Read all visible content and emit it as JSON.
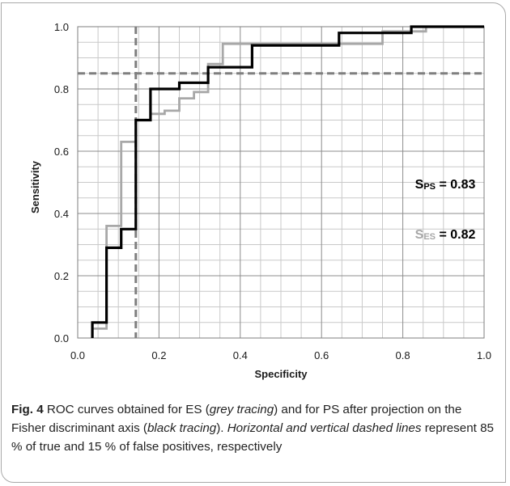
{
  "chart_data": {
    "type": "line",
    "xlabel": "Specificity",
    "ylabel": "Sensitivity",
    "xlim": [
      0,
      1.0
    ],
    "ylim": [
      0,
      1.0
    ],
    "x_ticks": [
      "0.0",
      "0.2",
      "0.4",
      "0.6",
      "0.8",
      "1.0"
    ],
    "y_ticks": [
      "0.0",
      "0.2",
      "0.4",
      "0.6",
      "0.8",
      "1.0"
    ],
    "grid": true,
    "series": [
      {
        "color": "#000000",
        "x": [
          0.036,
          0.036,
          0.071,
          0.071,
          0.107,
          0.107,
          0.143,
          0.143,
          0.179,
          0.179,
          0.25,
          0.25,
          0.321,
          0.321,
          0.357,
          0.357,
          0.429,
          0.429,
          0.643,
          0.643,
          0.821,
          0.821,
          0.857,
          0.857,
          1.0
        ],
        "y": [
          0.0,
          0.05,
          0.05,
          0.29,
          0.29,
          0.35,
          0.35,
          0.7,
          0.7,
          0.8,
          0.8,
          0.82,
          0.82,
          0.87,
          0.87,
          0.87,
          0.87,
          0.94,
          0.94,
          0.98,
          0.98,
          1.0,
          1.0,
          1.0,
          1.0
        ]
      },
      {
        "color": "#a8a8a8",
        "x": [
          0.036,
          0.036,
          0.071,
          0.071,
          0.107,
          0.107,
          0.143,
          0.143,
          0.179,
          0.179,
          0.214,
          0.214,
          0.25,
          0.25,
          0.286,
          0.286,
          0.321,
          0.321,
          0.357,
          0.357,
          0.75,
          0.75,
          0.857,
          0.857,
          1.0
        ],
        "y": [
          0.0,
          0.03,
          0.03,
          0.36,
          0.36,
          0.63,
          0.63,
          0.7,
          0.7,
          0.72,
          0.72,
          0.73,
          0.73,
          0.77,
          0.77,
          0.79,
          0.79,
          0.88,
          0.88,
          0.945,
          0.945,
          0.985,
          0.985,
          1.0,
          1.0
        ]
      }
    ],
    "reference_lines": [
      {
        "orientation": "horizontal",
        "value": 0.85,
        "style": "dashed",
        "color": "#7f7f7f"
      },
      {
        "orientation": "vertical",
        "value": 0.143,
        "style": "dashed",
        "color": "#7f7f7f"
      }
    ],
    "annotations": [
      {
        "main": "S",
        "sub": "PS",
        "tail": " = 0.83",
        "x": 0.83,
        "y": 0.48,
        "color": "#000000",
        "sub_color": "#000000"
      },
      {
        "main": "S",
        "sub": "ES",
        "tail": " = 0.82",
        "x": 0.83,
        "y": 0.32,
        "color": "#a8a8a8",
        "sub_color": "#a8a8a8",
        "tail_color": "#000000"
      }
    ]
  },
  "caption": {
    "fig_number": "Fig. 4",
    "text_1": "  ROC curves obtained for ES (",
    "italic_1": "grey tracing",
    "text_2": ") and for PS after projection on the Fisher discriminant axis (",
    "italic_2": "black tracing",
    "text_3": "). ",
    "italic_3": "Horizontal and vertical dashed lines",
    "text_4": " represent 85 % of true and 15 % of false positives, respectively"
  }
}
